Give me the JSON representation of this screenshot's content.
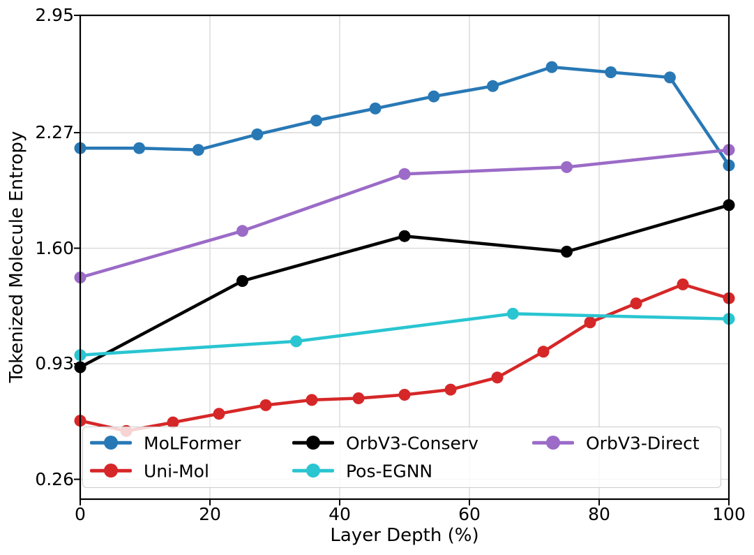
{
  "chart_data": {
    "type": "line",
    "xlabel": "Layer Depth (%)",
    "ylabel": "Tokenized Molecule Entropy",
    "xlim": [
      0,
      100
    ],
    "ylim": [
      0.145,
      2.95
    ],
    "xticks": [
      0,
      20,
      40,
      60,
      80,
      100
    ],
    "xtick_labels": [
      "0",
      "20",
      "40",
      "60",
      "80",
      "100"
    ],
    "yticks": [
      0.26,
      0.93,
      1.6,
      2.27,
      2.95
    ],
    "ytick_labels": [
      "0.26",
      "0.93",
      "1.60",
      "2.27",
      "2.95"
    ],
    "grid": true,
    "legend_position": "lower left inside",
    "legend_columns": 3,
    "series": [
      {
        "name": "MoLFormer",
        "color": "#2878b5",
        "x": [
          0,
          9.1,
          18.2,
          27.3,
          36.4,
          45.5,
          54.5,
          63.6,
          72.7,
          81.8,
          90.9,
          100
        ],
        "y": [
          2.18,
          2.18,
          2.17,
          2.26,
          2.34,
          2.41,
          2.48,
          2.54,
          2.65,
          2.62,
          2.59,
          2.08
        ]
      },
      {
        "name": "Uni-Mol",
        "color": "#d62728",
        "x": [
          0,
          7.1,
          14.3,
          21.4,
          28.6,
          35.7,
          42.9,
          50,
          57.1,
          64.3,
          71.4,
          78.6,
          85.7,
          92.9,
          100
        ],
        "y": [
          0.6,
          0.54,
          0.59,
          0.64,
          0.69,
          0.72,
          0.73,
          0.75,
          0.78,
          0.85,
          1.0,
          1.17,
          1.28,
          1.39,
          1.31
        ]
      },
      {
        "name": "OrbV3-Conserv",
        "color": "#000000",
        "x": [
          0,
          25,
          50,
          75,
          100
        ],
        "y": [
          0.91,
          1.41,
          1.67,
          1.58,
          1.85
        ]
      },
      {
        "name": "Pos-EGNN",
        "color": "#29c5d1",
        "x": [
          0,
          33.3,
          66.7,
          100
        ],
        "y": [
          0.98,
          1.06,
          1.22,
          1.19
        ]
      },
      {
        "name": "OrbV3-Direct",
        "color": "#9b6bc7",
        "x": [
          0,
          25,
          50,
          75,
          100
        ],
        "y": [
          1.43,
          1.7,
          2.03,
          2.07,
          2.17
        ]
      }
    ]
  },
  "style_colors": {
    "background": "#ffffff",
    "grid": "#d9d9d9",
    "axis": "#000000",
    "legend_border": "#cccccc"
  }
}
